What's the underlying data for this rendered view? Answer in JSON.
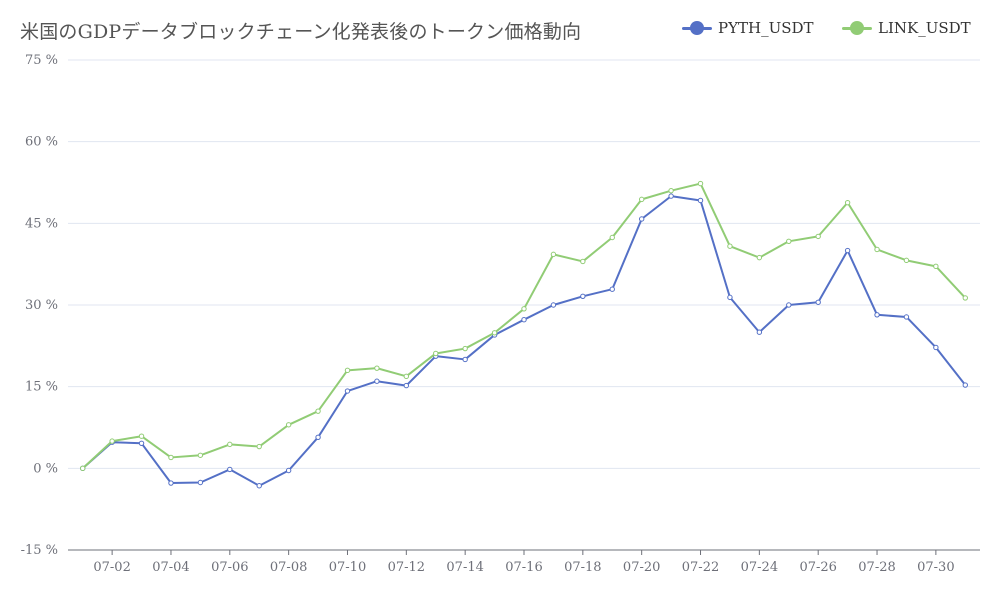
{
  "chart_data": {
    "type": "line",
    "title": "米国のGDPデータブロックチェーン化発表後のトークン価格動向",
    "xlabel": "",
    "ylabel": "",
    "ylim": [
      -15,
      75
    ],
    "y_ticks": [
      "-15 %",
      "0 %",
      "15 %",
      "30 %",
      "45 %",
      "60 %",
      "75 %"
    ],
    "y_tick_values": [
      -15,
      0,
      15,
      30,
      45,
      60,
      75
    ],
    "x_tick_labels": [
      "07-02",
      "07-04",
      "07-06",
      "07-08",
      "07-10",
      "07-12",
      "07-14",
      "07-16",
      "07-18",
      "07-20",
      "07-22",
      "07-24",
      "07-26",
      "07-28",
      "07-30"
    ],
    "x": [
      "07-01",
      "07-02",
      "07-03",
      "07-04",
      "07-05",
      "07-06",
      "07-07",
      "07-08",
      "07-09",
      "07-10",
      "07-11",
      "07-12",
      "07-13",
      "07-14",
      "07-15",
      "07-16",
      "07-17",
      "07-18",
      "07-19",
      "07-20",
      "07-21",
      "07-22",
      "07-23",
      "07-24",
      "07-25",
      "07-26",
      "07-27",
      "07-28",
      "07-29",
      "07-30",
      "07-31"
    ],
    "grid": true,
    "legend_position": "top-right",
    "series": [
      {
        "name": "PYTH_USDT",
        "color": "#5470c6",
        "values": [
          0,
          4.8,
          4.6,
          -2.7,
          -2.6,
          -0.2,
          -3.2,
          -0.4,
          5.7,
          14.2,
          16.0,
          15.2,
          20.6,
          20.0,
          24.5,
          27.3,
          30.0,
          31.6,
          32.9,
          45.8,
          50.0,
          49.2,
          31.4,
          25.0,
          30.0,
          30.5,
          40.0,
          28.2,
          27.8,
          22.2,
          15.3
        ]
      },
      {
        "name": "LINK_USDT",
        "color": "#91cc75",
        "values": [
          0,
          5.0,
          5.9,
          2.0,
          2.4,
          4.4,
          4.0,
          8.0,
          10.5,
          18.0,
          18.4,
          16.9,
          21.1,
          22.0,
          24.9,
          29.3,
          39.3,
          38.0,
          42.4,
          49.4,
          51.0,
          52.3,
          40.8,
          38.7,
          41.7,
          42.6,
          48.8,
          40.2,
          38.2,
          37.1,
          31.3
        ]
      }
    ]
  }
}
